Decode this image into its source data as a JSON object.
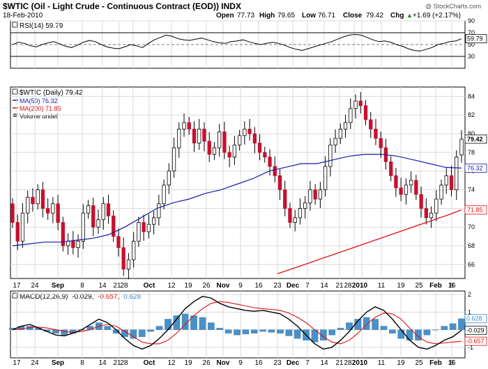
{
  "header": {
    "title": "$WTIC (Oil - Light Crude - Continuous Contract (EOD)) INDX",
    "date": "18-Feb-2010",
    "credit": "@ StockCharts.com",
    "quote": {
      "open_label": "Open",
      "open": "77.73",
      "high_label": "High",
      "high": "79.65",
      "low_label": "Low",
      "low": "76.71",
      "close_label": "Close",
      "close": "79.42",
      "chg_label": "Chg",
      "chg": "+1.69 (+2.17%)",
      "chg_arrow": "▲"
    }
  },
  "rsi_panel": {
    "legend": "RSI(14) 59.79",
    "line_color": "#000000"
  },
  "price_panel": {
    "legends": [
      {
        "text": "$WTIC (Daily) 79.42",
        "color": "#000000"
      },
      {
        "text": "MA(50) 76.32",
        "color": "#1a1aa8"
      },
      {
        "text": "MA(200) 71.85",
        "color": "#d01010"
      },
      {
        "text": "Volume undef",
        "color": "#000000"
      }
    ],
    "colors": {
      "up": "#ffffff",
      "down": "#c8102e",
      "ma50": "#1a1aa8",
      "ma200": "#e01010"
    }
  },
  "macd_panel": {
    "legend_prefix": "MACD(12,26,9)",
    "legend_macd": "-0.029,",
    "legend_signal": "-0.657,",
    "legend_hist": "0.628",
    "colors": {
      "macd": "#000000",
      "signal": "#e01010",
      "hist": "#4a90c8"
    }
  },
  "chart_data": [
    {
      "type": "line",
      "title": "RSI(14) 59.79",
      "ylim": [
        10,
        90
      ],
      "yticks": [
        "90",
        "70",
        "50",
        "30"
      ],
      "reference_lines": [
        70,
        50,
        30
      ],
      "last_value_label": "59.79",
      "values": [
        50,
        54,
        52,
        48,
        46,
        50,
        53,
        55,
        51,
        47,
        45,
        49,
        54,
        57,
        55,
        50,
        46,
        44,
        43,
        46,
        50,
        48,
        45,
        52,
        58,
        62,
        66,
        64,
        60,
        58,
        57,
        59,
        61,
        58,
        55,
        53,
        52,
        55,
        56,
        58,
        55,
        52,
        50,
        52,
        54,
        52,
        49,
        45,
        42,
        40,
        43,
        46,
        49,
        52,
        55,
        59,
        63,
        66,
        67,
        66,
        62,
        58,
        55,
        56,
        54,
        50,
        47,
        43,
        40,
        39,
        42,
        45,
        50,
        52,
        55,
        56,
        59.79
      ],
      "x_tick_labels": [
        "17",
        "24",
        "Sep",
        "8",
        "14",
        "21",
        "28",
        "Oct",
        "12",
        "19",
        "26",
        "Nov",
        "9",
        "16",
        "23",
        "Dec",
        "7",
        "14",
        "21",
        "28",
        "2010",
        "11",
        "19",
        "25",
        "Feb",
        "8",
        "16"
      ]
    },
    {
      "type": "candlestick",
      "title": "$WTIC (Daily) 79.42",
      "ylim": [
        64.5,
        85
      ],
      "yticks": [
        "84",
        "82",
        "80",
        "78",
        "76",
        "74",
        "72",
        "70",
        "68",
        "66"
      ],
      "last_labels": {
        "close": "79.42",
        "ma50": "76.32",
        "ma200": "71.85"
      },
      "series": [
        {
          "name": "$WTIC (Daily)",
          "values": [
            {
              "o": 72.5,
              "c": 70.5
            },
            {
              "o": 70.5,
              "c": 68.5
            },
            {
              "o": 68.5,
              "c": 71.5
            },
            {
              "o": 71.5,
              "c": 73.2
            },
            {
              "o": 73.2,
              "c": 72.5
            },
            {
              "o": 72.5,
              "c": 74.0
            },
            {
              "o": 74.0,
              "c": 72.0
            },
            {
              "o": 72.0,
              "c": 71.5
            },
            {
              "o": 71.5,
              "c": 72.5
            },
            {
              "o": 72.5,
              "c": 70.5
            },
            {
              "o": 70.5,
              "c": 68.0
            },
            {
              "o": 68.0,
              "c": 68.5
            },
            {
              "o": 68.5,
              "c": 67.8
            },
            {
              "o": 67.8,
              "c": 68.5
            },
            {
              "o": 68.5,
              "c": 71.5
            },
            {
              "o": 71.5,
              "c": 72.3
            },
            {
              "o": 72.3,
              "c": 70.0
            },
            {
              "o": 70.0,
              "c": 70.8
            },
            {
              "o": 70.8,
              "c": 72.5
            },
            {
              "o": 72.5,
              "c": 71.2
            },
            {
              "o": 71.2,
              "c": 69.0
            },
            {
              "o": 69.0,
              "c": 67.8
            },
            {
              "o": 67.8,
              "c": 65.5
            },
            {
              "o": 65.5,
              "c": 66.5
            },
            {
              "o": 66.5,
              "c": 68.5
            },
            {
              "o": 68.5,
              "c": 70.5
            },
            {
              "o": 70.5,
              "c": 69.5
            },
            {
              "o": 69.5,
              "c": 70.3
            },
            {
              "o": 70.3,
              "c": 71.0
            },
            {
              "o": 71.0,
              "c": 72.5
            },
            {
              "o": 72.5,
              "c": 74.5
            },
            {
              "o": 74.5,
              "c": 76.0
            },
            {
              "o": 76.0,
              "c": 78.5
            },
            {
              "o": 78.5,
              "c": 80.5
            },
            {
              "o": 80.5,
              "c": 81.2
            },
            {
              "o": 81.2,
              "c": 80.5
            },
            {
              "o": 80.5,
              "c": 79.0
            },
            {
              "o": 79.0,
              "c": 80.5
            },
            {
              "o": 80.5,
              "c": 79.2
            },
            {
              "o": 79.2,
              "c": 77.8
            },
            {
              "o": 77.8,
              "c": 78.5
            },
            {
              "o": 78.5,
              "c": 80.2
            },
            {
              "o": 80.2,
              "c": 78.0
            },
            {
              "o": 78.0,
              "c": 77.5
            },
            {
              "o": 77.5,
              "c": 78.8
            },
            {
              "o": 78.8,
              "c": 79.8
            },
            {
              "o": 79.8,
              "c": 80.5
            },
            {
              "o": 80.5,
              "c": 80.0
            },
            {
              "o": 80.0,
              "c": 79.0
            },
            {
              "o": 79.0,
              "c": 78.0
            },
            {
              "o": 78.0,
              "c": 77.5
            },
            {
              "o": 77.5,
              "c": 76.5
            },
            {
              "o": 76.5,
              "c": 75.5
            },
            {
              "o": 75.5,
              "c": 74.0
            },
            {
              "o": 74.0,
              "c": 72.0
            },
            {
              "o": 72.0,
              "c": 70.5
            },
            {
              "o": 70.5,
              "c": 71.0
            },
            {
              "o": 71.0,
              "c": 72.0
            },
            {
              "o": 72.0,
              "c": 72.6
            },
            {
              "o": 72.6,
              "c": 74.0
            },
            {
              "o": 74.0,
              "c": 73.0
            },
            {
              "o": 73.0,
              "c": 74.0
            },
            {
              "o": 74.0,
              "c": 76.5
            },
            {
              "o": 76.5,
              "c": 78.8
            },
            {
              "o": 78.8,
              "c": 79.5
            },
            {
              "o": 79.5,
              "c": 80.5
            },
            {
              "o": 80.5,
              "c": 81.2
            },
            {
              "o": 81.2,
              "c": 82.7
            },
            {
              "o": 82.7,
              "c": 83.5
            },
            {
              "o": 83.5,
              "c": 83.0
            },
            {
              "o": 83.0,
              "c": 81.5
            },
            {
              "o": 81.5,
              "c": 80.5
            },
            {
              "o": 80.5,
              "c": 79.5
            },
            {
              "o": 79.5,
              "c": 78.5
            },
            {
              "o": 78.5,
              "c": 77.0
            },
            {
              "o": 77.0,
              "c": 75.5
            },
            {
              "o": 75.5,
              "c": 74.2
            },
            {
              "o": 74.2,
              "c": 73.5
            },
            {
              "o": 73.5,
              "c": 74.5
            },
            {
              "o": 74.5,
              "c": 75.0
            },
            {
              "o": 75.0,
              "c": 73.5
            },
            {
              "o": 73.5,
              "c": 72.0
            },
            {
              "o": 72.0,
              "c": 71.0
            },
            {
              "o": 71.0,
              "c": 71.5
            },
            {
              "o": 71.5,
              "c": 73.0
            },
            {
              "o": 73.0,
              "c": 74.5
            },
            {
              "o": 74.5,
              "c": 75.5
            },
            {
              "o": 75.5,
              "c": 74.0
            },
            {
              "o": 74.0,
              "c": 77.5
            },
            {
              "o": 77.73,
              "c": 79.42
            }
          ]
        },
        {
          "name": "MA(50)",
          "values": [
            68.0,
            68.2,
            68.4,
            68.4,
            68.6,
            68.8,
            69.2,
            70.0,
            71.0,
            72.0,
            72.6,
            73.0,
            73.6,
            74.0,
            74.6,
            75.2,
            76.0,
            76.4,
            76.8,
            76.8,
            77.2,
            77.6,
            77.8,
            77.8,
            77.6,
            77.2,
            76.8,
            76.4,
            76.32
          ]
        },
        {
          "name": "MA(200)",
          "values": [
            65.0,
            65.4,
            65.8,
            66.2,
            66.6,
            67.0,
            67.4,
            67.8,
            68.2,
            68.6,
            69.0,
            69.4,
            69.8,
            70.2,
            70.6,
            71.0,
            71.4,
            71.85
          ]
        }
      ]
    },
    {
      "type": "line",
      "title": "MACD(12,26,9)",
      "ylim": [
        -1.6,
        2.2
      ],
      "yticks": [
        "2",
        "1",
        "0",
        "-1"
      ],
      "last_labels": {
        "macd": "-0.029",
        "signal": "-0.657",
        "hist": "0.628"
      },
      "series": [
        {
          "name": "MACD",
          "values": [
            0.0,
            0.2,
            0.3,
            0.1,
            -0.1,
            -0.3,
            -0.35,
            -0.2,
            0.0,
            0.3,
            0.6,
            0.4,
            0.0,
            -0.5,
            -0.9,
            -1.1,
            -0.9,
            -0.5,
            0.0,
            0.6,
            1.2,
            1.6,
            1.9,
            1.8,
            1.5,
            1.3,
            1.2,
            1.1,
            1.05,
            1.1,
            1.0,
            0.9,
            0.6,
            0.2,
            -0.3,
            -0.8,
            -1.1,
            -1.0,
            -0.6,
            -0.1,
            0.5,
            1.0,
            1.3,
            1.1,
            0.6,
            0.0,
            -0.6,
            -1.0,
            -1.1,
            -0.9,
            -0.6,
            -0.4,
            -0.029
          ]
        },
        {
          "name": "Signal",
          "values": [
            0.0,
            0.05,
            0.12,
            0.15,
            0.1,
            0.0,
            -0.1,
            -0.15,
            -0.1,
            0.0,
            0.2,
            0.3,
            0.2,
            -0.1,
            -0.4,
            -0.7,
            -0.8,
            -0.8,
            -0.6,
            -0.2,
            0.3,
            0.8,
            1.2,
            1.5,
            1.6,
            1.55,
            1.45,
            1.35,
            1.25,
            1.2,
            1.15,
            1.1,
            0.95,
            0.7,
            0.4,
            0.0,
            -0.4,
            -0.7,
            -0.8,
            -0.6,
            -0.2,
            0.3,
            0.7,
            0.95,
            0.9,
            0.6,
            0.1,
            -0.4,
            -0.7,
            -0.8,
            -0.75,
            -0.7,
            -0.657
          ]
        },
        {
          "name": "Histogram",
          "values": [
            0.1,
            0.2,
            0.2,
            0.1,
            -0.1,
            -0.2,
            -0.3,
            -0.2,
            0.0,
            0.2,
            0.4,
            0.2,
            -0.2,
            -0.4,
            -0.5,
            -0.4,
            -0.1,
            0.2,
            0.6,
            0.8,
            0.9,
            0.8,
            0.7,
            0.4,
            0.1,
            -0.2,
            -0.3,
            -0.25,
            -0.2,
            -0.1,
            -0.15,
            -0.2,
            -0.35,
            -0.5,
            -0.6,
            -0.7,
            -0.6,
            -0.3,
            0.1,
            0.4,
            0.6,
            0.7,
            0.6,
            0.2,
            -0.2,
            -0.5,
            -0.6,
            -0.6,
            -0.3,
            0.0,
            0.2,
            0.35,
            0.628
          ]
        }
      ]
    }
  ]
}
